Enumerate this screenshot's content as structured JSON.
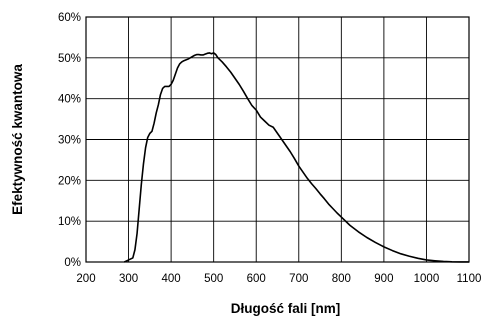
{
  "chart_data": {
    "type": "line",
    "title": "",
    "xlabel": "Długość fali [nm]",
    "ylabel": "Efektywność kwantowa",
    "xlim": [
      200,
      1100
    ],
    "ylim": [
      0,
      60
    ],
    "x_ticks": [
      200,
      300,
      400,
      500,
      600,
      700,
      800,
      900,
      1000,
      1100
    ],
    "y_ticks": [
      0,
      10,
      20,
      30,
      40,
      50,
      60
    ],
    "x_tick_labels": [
      "200",
      "300",
      "400",
      "500",
      "600",
      "700",
      "800",
      "900",
      "1000",
      "1100"
    ],
    "y_tick_labels": [
      "0%",
      "10%",
      "20%",
      "30%",
      "40%",
      "50%",
      "60%"
    ],
    "grid": true,
    "legend": "none",
    "line_color": "#000000",
    "series": [
      {
        "x": [
          290,
          300,
          310,
          315,
          320,
          325,
          330,
          335,
          340,
          345,
          350,
          355,
          360,
          365,
          370,
          375,
          380,
          385,
          390,
          395,
          400,
          405,
          410,
          415,
          420,
          425,
          430,
          435,
          440,
          445,
          450,
          455,
          460,
          465,
          470,
          475,
          480,
          485,
          490,
          495,
          500,
          505,
          510,
          520,
          530,
          540,
          550,
          560,
          570,
          580,
          590,
          600,
          610,
          620,
          630,
          640,
          650,
          660,
          670,
          680,
          690,
          700,
          710,
          720,
          730,
          740,
          750,
          760,
          770,
          780,
          790,
          800,
          820,
          840,
          860,
          880,
          900,
          920,
          940,
          960,
          980,
          1000,
          1020,
          1040,
          1060,
          1080,
          1100
        ],
        "y": [
          0,
          0.5,
          1,
          3,
          7,
          13,
          19,
          24,
          28,
          30.5,
          31.5,
          32,
          34,
          36.5,
          38.5,
          41,
          42.5,
          43,
          43,
          43,
          43.5,
          44.5,
          46,
          47.5,
          48.5,
          49,
          49.3,
          49.5,
          49.7,
          50,
          50.3,
          50.6,
          50.8,
          50.8,
          50.7,
          50.7,
          50.9,
          51.1,
          51.2,
          51,
          51.2,
          50.8,
          50,
          49,
          47.8,
          46.5,
          45,
          43.5,
          41.8,
          40,
          38.3,
          37.2,
          35.5,
          34.5,
          33.5,
          33,
          31.5,
          30,
          28.5,
          27,
          25.3,
          23.5,
          22,
          20.5,
          19.2,
          18,
          16.7,
          15.5,
          14.2,
          13.1,
          12,
          11,
          9,
          7.4,
          6,
          4.8,
          3.7,
          2.8,
          2,
          1.4,
          0.9,
          0.5,
          0.3,
          0.15,
          0.05,
          0.02,
          0.01
        ]
      }
    ]
  }
}
